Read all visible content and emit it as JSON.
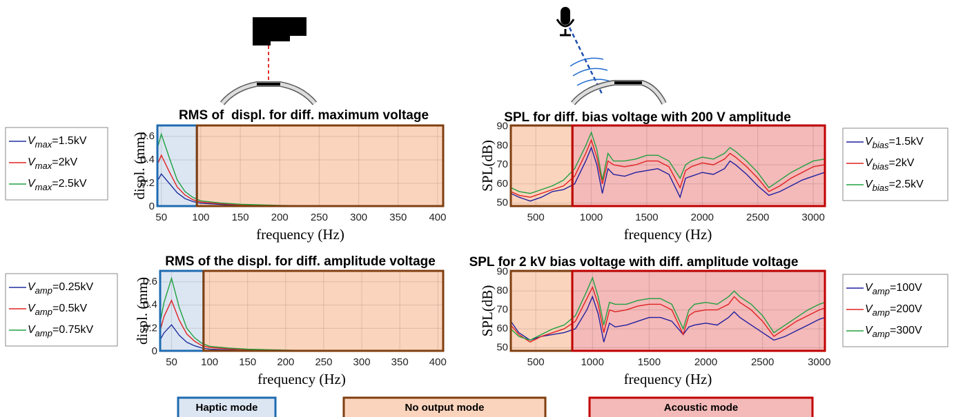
{
  "chart_data": [
    {
      "type": "line",
      "title": "RMS of  displ. for diff. maximum voltage",
      "xlabel": "frequency (Hz)",
      "ylabel": "displ. (mm)",
      "xlim": [
        45,
        407
      ],
      "ylim": [
        0,
        0.7
      ],
      "xticks": [
        50,
        100,
        150,
        200,
        250,
        300,
        350,
        400
      ],
      "yticks": [
        0,
        0.2,
        0.4,
        0.6
      ],
      "grid": true,
      "bands": [
        {
          "from": 45,
          "to": 95,
          "fill": "#dce6f2",
          "edge": "#1f6bb0"
        },
        {
          "from": 95,
          "to": 407,
          "fill": "#fbd4bd",
          "edge": "#7f3f10"
        }
      ],
      "series": [
        {
          "name": [
            "V",
            "max",
            "=1.5kV"
          ],
          "color": "#1f2f9f",
          "x": [
            45,
            50,
            60,
            70,
            80,
            90,
            100,
            125,
            150,
            200,
            250,
            300,
            350,
            400
          ],
          "values": [
            0.22,
            0.28,
            0.2,
            0.12,
            0.07,
            0.045,
            0.03,
            0.02,
            0.014,
            0.008,
            0.005,
            0.003,
            0.002,
            0.001
          ]
        },
        {
          "name": [
            "V",
            "max",
            "=2kV"
          ],
          "color": "#e02020",
          "x": [
            45,
            50,
            60,
            70,
            80,
            90,
            100,
            125,
            150,
            200,
            250,
            300,
            350,
            400
          ],
          "values": [
            0.36,
            0.44,
            0.3,
            0.17,
            0.1,
            0.06,
            0.04,
            0.026,
            0.018,
            0.01,
            0.006,
            0.004,
            0.003,
            0.002
          ]
        },
        {
          "name": [
            "V",
            "max",
            "=2.5kV"
          ],
          "color": "#20a040",
          "x": [
            45,
            50,
            60,
            70,
            80,
            90,
            100,
            125,
            150,
            200,
            250,
            300,
            350,
            400
          ],
          "values": [
            0.5,
            0.62,
            0.42,
            0.23,
            0.13,
            0.08,
            0.05,
            0.033,
            0.022,
            0.012,
            0.007,
            0.005,
            0.003,
            0.002
          ]
        }
      ]
    },
    {
      "type": "line",
      "title": "RMS of the displ. for diff. amplitude voltage",
      "xlabel": "frequency (Hz)",
      "ylabel": "displ. (mm)",
      "xlim": [
        35,
        407
      ],
      "ylim": [
        0,
        0.7
      ],
      "xticks": [
        50,
        100,
        150,
        200,
        250,
        300,
        350,
        400
      ],
      "yticks": [
        0,
        0.2,
        0.4,
        0.6
      ],
      "grid": true,
      "bands": [
        {
          "from": 35,
          "to": 92,
          "fill": "#dce6f2",
          "edge": "#1f6bb0"
        },
        {
          "from": 92,
          "to": 407,
          "fill": "#fbd4bd",
          "edge": "#7f3f10"
        }
      ],
      "series": [
        {
          "name": [
            "V",
            "amp",
            "=0.25kV"
          ],
          "color": "#1f2f9f",
          "x": [
            35,
            40,
            50,
            60,
            70,
            80,
            90,
            100,
            125,
            150,
            200,
            250,
            300,
            350,
            400
          ],
          "values": [
            0.1,
            0.16,
            0.23,
            0.14,
            0.08,
            0.05,
            0.03,
            0.02,
            0.014,
            0.01,
            0.006,
            0.004,
            0.003,
            0.002,
            0.001
          ]
        },
        {
          "name": [
            "V",
            "amp",
            "=0.5kV"
          ],
          "color": "#e02020",
          "x": [
            35,
            40,
            50,
            60,
            70,
            80,
            90,
            100,
            125,
            150,
            200,
            250,
            300,
            350,
            400
          ],
          "values": [
            0.18,
            0.3,
            0.44,
            0.27,
            0.15,
            0.09,
            0.05,
            0.035,
            0.024,
            0.017,
            0.01,
            0.006,
            0.004,
            0.003,
            0.002
          ]
        },
        {
          "name": [
            "V",
            "amp",
            "=0.75kV"
          ],
          "color": "#20a040",
          "x": [
            35,
            40,
            50,
            60,
            70,
            80,
            90,
            100,
            125,
            150,
            200,
            250,
            300,
            350,
            400
          ],
          "values": [
            0.25,
            0.42,
            0.63,
            0.38,
            0.2,
            0.12,
            0.07,
            0.045,
            0.03,
            0.02,
            0.012,
            0.007,
            0.005,
            0.003,
            0.002
          ]
        }
      ]
    },
    {
      "type": "line",
      "title": "SPL for diff. bias voltage with 200 V amplitude",
      "xlabel": "frequency (Hz)",
      "ylabel": "SPL(dB)",
      "xlim": [
        275,
        3105
      ],
      "ylim": [
        48,
        91
      ],
      "xticks": [
        500,
        1000,
        1500,
        2000,
        2500,
        3000
      ],
      "yticks": [
        50,
        60,
        70,
        80,
        90
      ],
      "grid": true,
      "bands": [
        {
          "from": 275,
          "to": 830,
          "fill": "#fbd4bd",
          "edge": "#7f3f10"
        },
        {
          "from": 830,
          "to": 3105,
          "fill": "#f4b9b9",
          "edge": "#c00000"
        }
      ],
      "series": [
        {
          "name": [
            "V",
            "bias",
            "=1.5kV"
          ],
          "color": "#1f1f9f",
          "x": [
            275,
            350,
            450,
            550,
            650,
            750,
            850,
            950,
            1000,
            1050,
            1100,
            1150,
            1200,
            1300,
            1400,
            1500,
            1600,
            1700,
            1800,
            1850,
            1900,
            2000,
            2100,
            2200,
            2250,
            2300,
            2400,
            2500,
            2600,
            2700,
            2800,
            2900,
            3000,
            3100
          ],
          "values": [
            55,
            53,
            51,
            53,
            56,
            57,
            60,
            72,
            79,
            70,
            55,
            68,
            65,
            64,
            66,
            67,
            68,
            65,
            53,
            63,
            64,
            66,
            65,
            68,
            72,
            70,
            65,
            59,
            54,
            56,
            59,
            62,
            64,
            66
          ]
        },
        {
          "name": [
            "V",
            "bias",
            "=2kV"
          ],
          "color": "#e02020",
          "x": [
            275,
            350,
            450,
            550,
            650,
            750,
            850,
            950,
            1000,
            1050,
            1100,
            1150,
            1200,
            1300,
            1400,
            1500,
            1600,
            1700,
            1800,
            1850,
            1900,
            2000,
            2100,
            2200,
            2250,
            2300,
            2400,
            2500,
            2600,
            2700,
            2800,
            2900,
            3000,
            3100
          ],
          "values": [
            56,
            54,
            53,
            55,
            57,
            59,
            64,
            76,
            83,
            74,
            60,
            72,
            70,
            69,
            70,
            72,
            72,
            69,
            58,
            67,
            69,
            71,
            70,
            73,
            76,
            74,
            69,
            63,
            56,
            59,
            63,
            66,
            69,
            70
          ]
        },
        {
          "name": [
            "V",
            "bias",
            "=2.5kV"
          ],
          "color": "#20a040",
          "x": [
            275,
            350,
            450,
            550,
            650,
            750,
            850,
            950,
            1000,
            1050,
            1100,
            1150,
            1200,
            1300,
            1400,
            1500,
            1600,
            1700,
            1800,
            1850,
            1900,
            2000,
            2100,
            2200,
            2250,
            2300,
            2400,
            2500,
            2600,
            2700,
            2800,
            2900,
            3000,
            3100
          ],
          "values": [
            58,
            56,
            55,
            57,
            59,
            62,
            68,
            80,
            87,
            78,
            62,
            76,
            72,
            72,
            73,
            75,
            75,
            72,
            63,
            70,
            72,
            74,
            73,
            76,
            79,
            77,
            72,
            66,
            58,
            62,
            66,
            69,
            72,
            73
          ]
        }
      ]
    },
    {
      "type": "line",
      "title": "SPL for 2 kV bias voltage with diff. amplitude voltage",
      "xlabel": "frequency (Hz)",
      "ylabel": "SPL(dB)",
      "xlim": [
        280,
        3050
      ],
      "ylim": [
        48,
        91
      ],
      "xticks": [
        500,
        1000,
        1500,
        2000,
        2500,
        3000
      ],
      "yticks": [
        50,
        60,
        70,
        80,
        90
      ],
      "grid": true,
      "bands": [
        {
          "from": 280,
          "to": 822,
          "fill": "#fbd4bd",
          "edge": "#7f3f10"
        },
        {
          "from": 822,
          "to": 3050,
          "fill": "#f4b9b9",
          "edge": "#c00000"
        }
      ],
      "series": [
        {
          "name": [
            "V",
            "amp",
            "=100V"
          ],
          "color": "#1f1f9f",
          "x": [
            280,
            350,
            450,
            550,
            650,
            750,
            850,
            950,
            1000,
            1050,
            1100,
            1150,
            1200,
            1300,
            1400,
            1500,
            1600,
            1700,
            1800,
            1850,
            1900,
            2000,
            2100,
            2200,
            2250,
            2300,
            2400,
            2500,
            2600,
            2700,
            2800,
            2900,
            3000,
            3050
          ],
          "values": [
            64,
            58,
            54,
            56,
            57,
            58,
            60,
            70,
            77,
            68,
            53,
            63,
            61,
            62,
            64,
            66,
            66,
            64,
            57,
            61,
            62,
            63,
            62,
            66,
            69,
            66,
            62,
            58,
            54,
            56,
            59,
            62,
            65,
            66
          ]
        },
        {
          "name": [
            "V",
            "amp",
            "=200V"
          ],
          "color": "#e02020",
          "x": [
            280,
            350,
            450,
            550,
            650,
            750,
            850,
            950,
            1000,
            1050,
            1100,
            1150,
            1200,
            1300,
            1400,
            1500,
            1600,
            1700,
            1800,
            1850,
            1900,
            2000,
            2100,
            2200,
            2250,
            2300,
            2400,
            2500,
            2600,
            2700,
            2800,
            2900,
            3000,
            3050
          ],
          "values": [
            62,
            57,
            53,
            56,
            58,
            60,
            64,
            76,
            82,
            73,
            58,
            70,
            69,
            70,
            72,
            73,
            73,
            70,
            57,
            67,
            69,
            70,
            70,
            73,
            77,
            74,
            70,
            64,
            56,
            60,
            64,
            67,
            70,
            71
          ]
        },
        {
          "name": [
            "V",
            "amp",
            "=300V"
          ],
          "color": "#20a040",
          "x": [
            280,
            350,
            450,
            550,
            650,
            750,
            850,
            950,
            1000,
            1050,
            1100,
            1150,
            1200,
            1300,
            1400,
            1500,
            1600,
            1700,
            1800,
            1850,
            1900,
            2000,
            2100,
            2200,
            2250,
            2300,
            2400,
            2500,
            2600,
            2700,
            2800,
            2900,
            3000,
            3050
          ],
          "values": [
            60,
            56,
            54,
            57,
            60,
            62,
            67,
            80,
            87,
            77,
            62,
            74,
            73,
            73,
            75,
            76,
            76,
            73,
            60,
            70,
            73,
            74,
            73,
            77,
            80,
            77,
            73,
            67,
            58,
            62,
            66,
            70,
            73,
            74
          ]
        }
      ]
    }
  ],
  "modes": [
    {
      "label": "Haptic mode",
      "fill": "#dce6f2",
      "edge": "#1f6bb0"
    },
    {
      "label": "No output mode",
      "fill": "#fbd4bd",
      "edge": "#7f3f10"
    },
    {
      "label": "Acoustic mode",
      "fill": "#f4b9b9",
      "edge": "#c00000"
    }
  ]
}
